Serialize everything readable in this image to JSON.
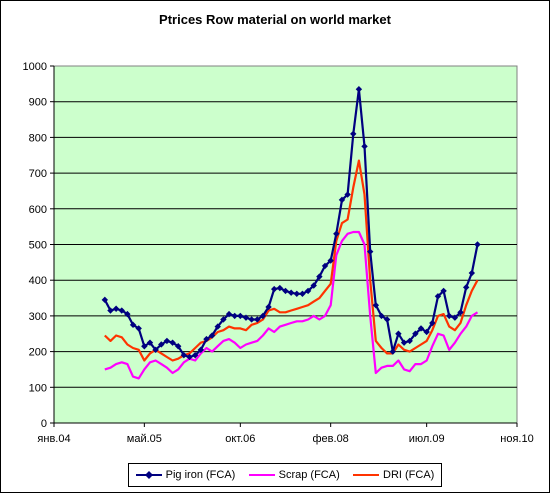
{
  "chart_data": {
    "type": "line",
    "title": "Ptrices Row material on world market",
    "xlabel": "",
    "ylabel": "",
    "ylim": [
      0,
      1000
    ],
    "y_ticks": [
      "0",
      "100",
      "200",
      "300",
      "400",
      "500",
      "600",
      "700",
      "800",
      "900",
      "1000"
    ],
    "x_tick_labels": [
      "янв.04",
      "май.05",
      "окт.06",
      "фев.08",
      "июл.09",
      "ноя.10"
    ],
    "grid": "horizontal",
    "legend_position": "bottom",
    "colors": {
      "plot_bg": "#ccffcc",
      "pig_iron": "#000080",
      "scrap": "#ff00ff",
      "dri": "#ff3300"
    },
    "series": [
      {
        "name": "Pig iron (FCA)",
        "marker": "diamond",
        "x": [
          "2004-10",
          "2004-11",
          "2004-12",
          "2005-01",
          "2005-02",
          "2005-03",
          "2005-04",
          "2005-05",
          "2005-06",
          "2005-07",
          "2005-08",
          "2005-09",
          "2005-10",
          "2005-11",
          "2005-12",
          "2006-01",
          "2006-02",
          "2006-03",
          "2006-04",
          "2006-05",
          "2006-06",
          "2006-07",
          "2006-08",
          "2006-09",
          "2006-10",
          "2006-11",
          "2006-12",
          "2007-01",
          "2007-02",
          "2007-03",
          "2007-04",
          "2007-05",
          "2007-06",
          "2007-07",
          "2007-08",
          "2007-09",
          "2007-10",
          "2007-11",
          "2007-12",
          "2008-01",
          "2008-02",
          "2008-03",
          "2008-04",
          "2008-05",
          "2008-06",
          "2008-07",
          "2008-08",
          "2008-09",
          "2008-10",
          "2008-11",
          "2008-12",
          "2009-01",
          "2009-02",
          "2009-03",
          "2009-04",
          "2009-05",
          "2009-06",
          "2009-07",
          "2009-08",
          "2009-09",
          "2009-10",
          "2009-11",
          "2009-12",
          "2010-01",
          "2010-02",
          "2010-03",
          "2010-04"
        ],
        "values": [
          345,
          315,
          320,
          315,
          305,
          275,
          265,
          215,
          225,
          205,
          220,
          230,
          225,
          215,
          190,
          185,
          190,
          205,
          235,
          245,
          270,
          290,
          305,
          300,
          300,
          295,
          290,
          290,
          300,
          325,
          375,
          378,
          370,
          365,
          362,
          362,
          370,
          385,
          410,
          440,
          455,
          530,
          625,
          640,
          810,
          935,
          775,
          480,
          330,
          300,
          290,
          200,
          250,
          225,
          230,
          250,
          265,
          255,
          280,
          355,
          370,
          300,
          295,
          310,
          380,
          420,
          500
        ]
      },
      {
        "name": "Scrap (FCA)",
        "marker": "none",
        "x": [
          "2004-10",
          "2004-11",
          "2004-12",
          "2005-01",
          "2005-02",
          "2005-03",
          "2005-04",
          "2005-05",
          "2005-06",
          "2005-07",
          "2005-08",
          "2005-09",
          "2005-10",
          "2005-11",
          "2005-12",
          "2006-01",
          "2006-02",
          "2006-03",
          "2006-04",
          "2006-05",
          "2006-06",
          "2006-07",
          "2006-08",
          "2006-09",
          "2006-10",
          "2006-11",
          "2006-12",
          "2007-01",
          "2007-02",
          "2007-03",
          "2007-04",
          "2007-05",
          "2007-06",
          "2007-07",
          "2007-08",
          "2007-09",
          "2007-10",
          "2007-11",
          "2007-12",
          "2008-01",
          "2008-02",
          "2008-03",
          "2008-04",
          "2008-05",
          "2008-06",
          "2008-07",
          "2008-08",
          "2008-09",
          "2008-10",
          "2008-11",
          "2008-12",
          "2009-01",
          "2009-02",
          "2009-03",
          "2009-04",
          "2009-05",
          "2009-06",
          "2009-07",
          "2009-08",
          "2009-09",
          "2009-10",
          "2009-11",
          "2009-12",
          "2010-01",
          "2010-02",
          "2010-03",
          "2010-04"
        ],
        "values": [
          150,
          155,
          165,
          170,
          165,
          130,
          125,
          150,
          170,
          175,
          165,
          155,
          140,
          150,
          170,
          180,
          175,
          195,
          210,
          200,
          215,
          230,
          235,
          225,
          210,
          220,
          225,
          230,
          245,
          265,
          255,
          270,
          275,
          280,
          285,
          285,
          290,
          300,
          290,
          300,
          330,
          470,
          510,
          530,
          535,
          535,
          500,
          300,
          140,
          155,
          160,
          160,
          175,
          150,
          145,
          165,
          165,
          175,
          215,
          250,
          245,
          205,
          225,
          250,
          270,
          300,
          310
        ]
      },
      {
        "name": "DRI (FCA)",
        "marker": "none",
        "x": [
          "2004-10",
          "2004-11",
          "2004-12",
          "2005-01",
          "2005-02",
          "2005-03",
          "2005-04",
          "2005-05",
          "2005-06",
          "2005-07",
          "2005-08",
          "2005-09",
          "2005-10",
          "2005-11",
          "2005-12",
          "2006-01",
          "2006-02",
          "2006-03",
          "2006-04",
          "2006-05",
          "2006-06",
          "2006-07",
          "2006-08",
          "2006-09",
          "2006-10",
          "2006-11",
          "2006-12",
          "2007-01",
          "2007-02",
          "2007-03",
          "2007-04",
          "2007-05",
          "2007-06",
          "2007-07",
          "2007-08",
          "2007-09",
          "2007-10",
          "2007-11",
          "2007-12",
          "2008-01",
          "2008-02",
          "2008-03",
          "2008-04",
          "2008-05",
          "2008-06",
          "2008-07",
          "2008-08",
          "2008-09",
          "2008-10",
          "2008-11",
          "2008-12",
          "2009-01",
          "2009-02",
          "2009-03",
          "2009-04",
          "2009-05",
          "2009-06",
          "2009-07",
          "2009-08",
          "2009-09",
          "2009-10",
          "2009-11",
          "2009-12",
          "2010-01",
          "2010-02",
          "2010-03",
          "2010-04"
        ],
        "values": [
          245,
          230,
          245,
          240,
          220,
          210,
          205,
          175,
          195,
          205,
          195,
          185,
          175,
          180,
          190,
          195,
          210,
          225,
          230,
          240,
          255,
          260,
          270,
          265,
          265,
          260,
          275,
          280,
          290,
          315,
          320,
          310,
          310,
          315,
          320,
          325,
          330,
          340,
          350,
          370,
          390,
          510,
          560,
          570,
          660,
          735,
          640,
          400,
          230,
          210,
          195,
          195,
          220,
          205,
          200,
          210,
          220,
          230,
          260,
          300,
          305,
          270,
          260,
          280,
          330,
          370,
          400
        ]
      }
    ]
  }
}
